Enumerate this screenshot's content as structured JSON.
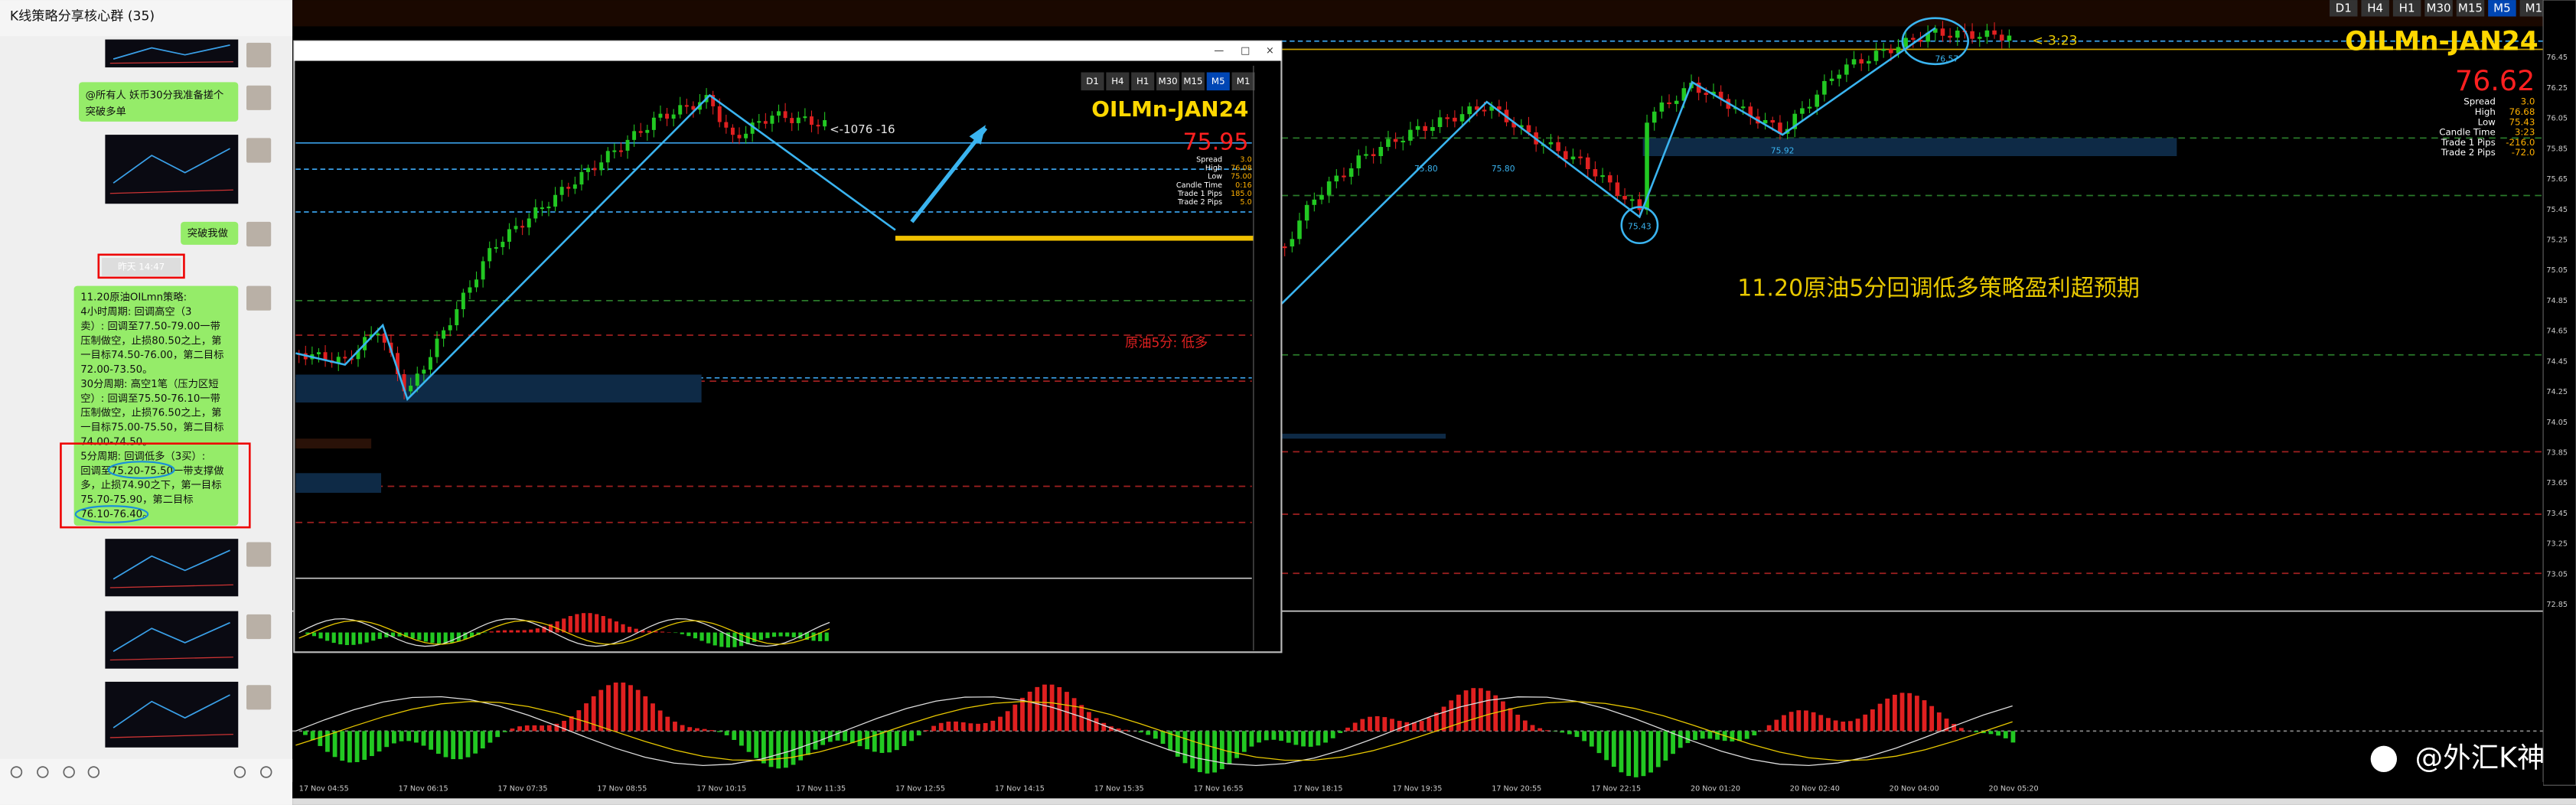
{
  "chat": {
    "title": "K线策略分享核心群 (35)",
    "timestamp": "昨天 14:47",
    "messages": [
      {
        "lines": [
          "@所有人 妖币30分我准备搓个",
          "突破多单"
        ]
      },
      {
        "lines": [
          "突破我做"
        ]
      },
      {
        "lines": [
          "11.20原油OILmn策略:",
          "4小时周期: 回调高空（3",
          "卖）: 回调至77.50-79.00一带",
          "压制做空，止损80.50之上，第",
          "一目标74.50-76.00，第二目标",
          "72.00-73.50。",
          "30分周期: 高空1笔（压力区短",
          "空）: 回调至75.50-76.10一带",
          "压制做空，止损76.50之上，第",
          "一目标75.00-75.50，第二目标",
          "74.00-74.50。",
          "5分周期: 回调低多（3买）:",
          "回调至75.20-75.50一带支撑做",
          "多，止损74.90之下，第一目标",
          "75.70-75.90，第二目标",
          "76.10-76.40。"
        ]
      }
    ]
  },
  "chart": {
    "symbol": "OILMn-JAN24",
    "price": "76.62",
    "timeframes": [
      "D1",
      "H4",
      "H1",
      "M30",
      "M15",
      "M5",
      "M1"
    ],
    "info": [
      [
        "Spread",
        "3.0"
      ],
      [
        "High",
        "76.68"
      ],
      [
        "Low",
        "75.43"
      ],
      [
        "Candle Time",
        "3:23"
      ],
      [
        "Trade 1 Pips",
        "-216.0"
      ],
      [
        "Trade 2 Pips",
        "-72.0"
      ]
    ],
    "countdown": "<-3:23",
    "headline": "11.20原油5分回调低多策略盈利超预期",
    "watermark": "@外汇K神",
    "point_labels": [
      "75.80",
      "75.80",
      "75.43",
      "75.92",
      "76.57"
    ],
    "price_axis": [
      "76.45",
      "76.25",
      "76.05",
      "75.85",
      "75.65",
      "75.45",
      "75.25",
      "75.05",
      "74.85",
      "74.65",
      "74.45",
      "74.25",
      "74.05",
      "73.85",
      "73.65",
      "73.45",
      "73.25",
      "73.05",
      "72.85"
    ],
    "time_axis": [
      "17 Nov 04:55",
      "17 Nov 06:15",
      "17 Nov 07:35",
      "17 Nov 08:55",
      "17 Nov 10:15",
      "17 Nov 11:35",
      "17 Nov 12:55",
      "17 Nov 14:15",
      "17 Nov 15:35",
      "17 Nov 16:55",
      "17 Nov 18:15",
      "17 Nov 19:35",
      "17 Nov 20:55",
      "17 Nov 22:15",
      "20 Nov 01:20",
      "20 Nov 02:40",
      "20 Nov 04:00",
      "20 Nov 05:20"
    ]
  },
  "inner": {
    "symbol": "OILMn-JAN24",
    "price": "75.95",
    "timeframes": [
      "D1",
      "H4",
      "H1",
      "M30",
      "M15",
      "M5",
      "M1"
    ],
    "info": [
      [
        "Spread",
        "3.0"
      ],
      [
        "High",
        "76.08"
      ],
      [
        "Low",
        "75.00"
      ],
      [
        "Candle Time",
        "0:16"
      ],
      [
        "Trade 1 Pips",
        "185.0"
      ],
      [
        "Trade 2 Pips",
        "5.0"
      ]
    ],
    "countdown": "<-1076 -16",
    "note": "原油5分: 低多"
  }
}
